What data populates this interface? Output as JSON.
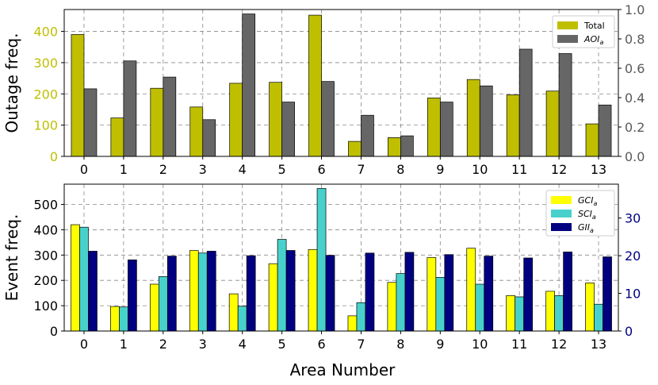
{
  "chart_data": [
    {
      "type": "bar",
      "categories": [
        "0",
        "1",
        "2",
        "3",
        "4",
        "5",
        "6",
        "7",
        "8",
        "9",
        "10",
        "11",
        "12",
        "13"
      ],
      "ylabel": "Outage freq.",
      "ylim": [
        0,
        470
      ],
      "yticks": [
        "0",
        "100",
        "200",
        "300",
        "400"
      ],
      "y2lim": [
        0,
        1.0
      ],
      "y2ticks": [
        "0.0",
        "0.2",
        "0.4",
        "0.6",
        "0.8",
        "1.0"
      ],
      "grid": true,
      "legend_position": "top-right",
      "series": [
        {
          "name": "Total",
          "axis": "left",
          "color": "#bfbf00",
          "values": [
            390,
            123,
            218,
            158,
            234,
            237,
            452,
            48,
            60,
            187,
            246,
            197,
            209,
            104
          ]
        },
        {
          "name": "AOI_a",
          "axis": "right",
          "color": "#666666",
          "values": [
            0.46,
            0.65,
            0.54,
            0.25,
            0.97,
            0.37,
            0.51,
            0.28,
            0.14,
            0.37,
            0.48,
            0.73,
            0.7,
            0.35
          ]
        }
      ]
    },
    {
      "type": "bar",
      "categories": [
        "0",
        "1",
        "2",
        "3",
        "4",
        "5",
        "6",
        "7",
        "8",
        "9",
        "10",
        "11",
        "12",
        "13"
      ],
      "xlabel": "Area Number",
      "ylabel": "Event freq.",
      "ylim": [
        0,
        580
      ],
      "yticks": [
        "0",
        "100",
        "200",
        "300",
        "400",
        "500"
      ],
      "y2lim": [
        0,
        39
      ],
      "y2ticks": [
        "0",
        "10",
        "20",
        "30"
      ],
      "grid": true,
      "legend_position": "top-right",
      "series": [
        {
          "name": "GCI_a",
          "axis": "left",
          "color": "#ffff00",
          "values": [
            420,
            97,
            185,
            318,
            147,
            266,
            322,
            60,
            192,
            290,
            327,
            140,
            157,
            190
          ]
        },
        {
          "name": "SCI_a",
          "axis": "left",
          "color": "#48d1cc",
          "values": [
            410,
            95,
            215,
            308,
            98,
            362,
            563,
            112,
            227,
            212,
            185,
            135,
            140,
            106
          ]
        },
        {
          "name": "GII_a",
          "axis": "right",
          "color": "#000080",
          "values": [
            21.2,
            18.9,
            19.9,
            21.2,
            20.0,
            21.4,
            20.1,
            20.7,
            20.9,
            20.3,
            19.9,
            19.4,
            21.0,
            19.7
          ]
        }
      ]
    }
  ],
  "colors": {
    "left_axis_top": "#bfbf00",
    "right_axis_top": "#595959",
    "left_axis_bottom": "#000000",
    "right_axis_bottom": "#000080"
  }
}
